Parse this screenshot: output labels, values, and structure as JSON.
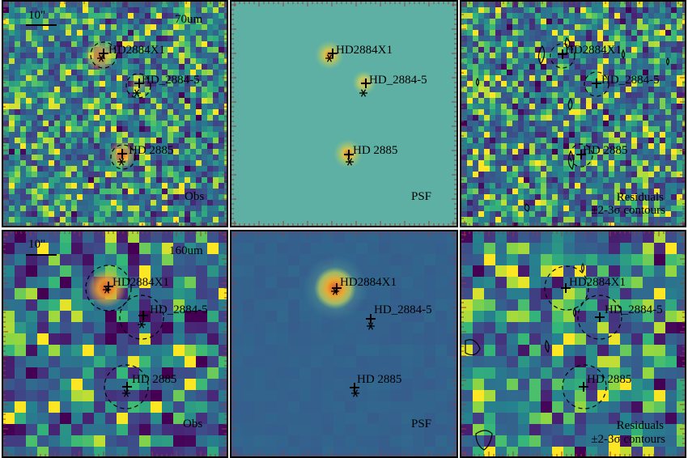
{
  "figure": {
    "scale_label": "10\"",
    "sources": [
      "HD2884X1",
      "HD_2884-5",
      "HD 2885"
    ]
  },
  "rows": [
    {
      "band": "70um",
      "panels": [
        {
          "label": "Obs"
        },
        {
          "label": "PSF"
        },
        {
          "label_line1": "Residuals",
          "label_line2": "±2-3σ contours"
        }
      ]
    },
    {
      "band": "160um",
      "panels": [
        {
          "label": "Obs"
        },
        {
          "label": "PSF"
        },
        {
          "label_line1": "Residuals",
          "label_line2": "±2-3σ contours"
        }
      ]
    }
  ],
  "colors": {
    "psf_background_70": "#5fb0a4",
    "psf_background_160": "#4a82c2",
    "peak": "#e0502a",
    "frame": "#000000"
  }
}
